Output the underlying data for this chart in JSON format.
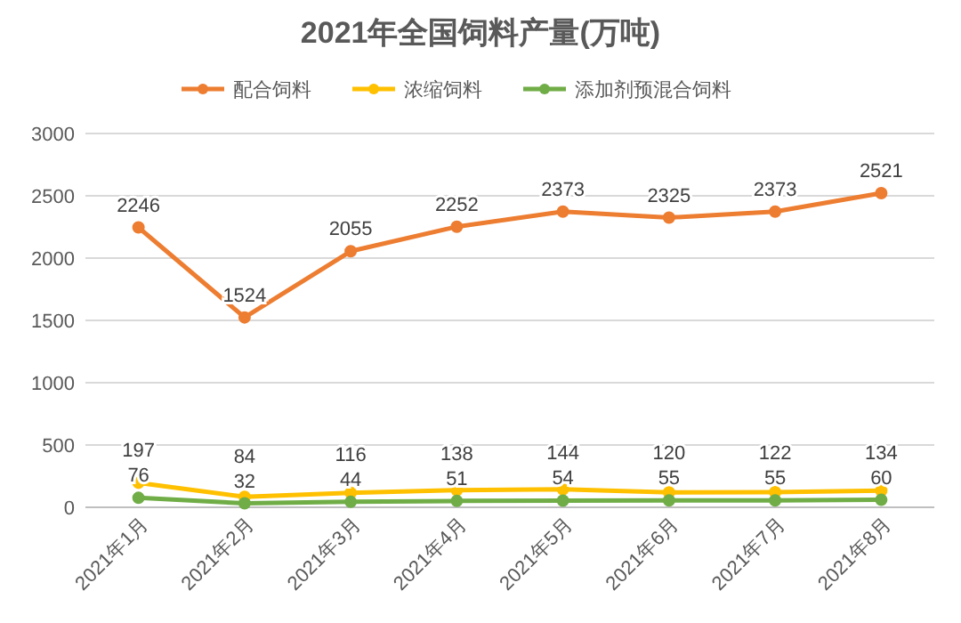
{
  "chart_data": {
    "type": "line",
    "title": "2021年全国饲料产量(万吨)",
    "categories": [
      "2021年1月",
      "2021年2月",
      "2021年3月",
      "2021年4月",
      "2021年5月",
      "2021年6月",
      "2021年7月",
      "2021年8月"
    ],
    "series": [
      {
        "name": "配合饲料",
        "color": "#ed7d31",
        "values": [
          2246,
          1524,
          2055,
          2252,
          2373,
          2325,
          2373,
          2521
        ]
      },
      {
        "name": "浓缩饲料",
        "color": "#ffc000",
        "values": [
          197,
          84,
          116,
          138,
          144,
          120,
          122,
          134
        ]
      },
      {
        "name": "添加剂预混合饲料",
        "color": "#70ad47",
        "values": [
          76,
          32,
          44,
          51,
          54,
          55,
          55,
          60
        ]
      }
    ],
    "ylim": [
      0,
      3000
    ],
    "yticks": [
      0,
      500,
      1000,
      1500,
      2000,
      2500,
      3000
    ],
    "grid": "y",
    "legend": "top",
    "marker": "circle",
    "line_style": "solid",
    "data_labels": true
  }
}
